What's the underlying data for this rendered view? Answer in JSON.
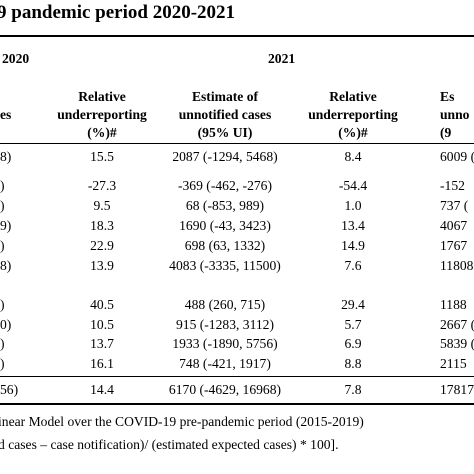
{
  "title": "9 pandemic period 2020-2021",
  "year_left": "2020",
  "year_right": "2021",
  "headers": {
    "c1": [
      "es"
    ],
    "c2": [
      "Relative",
      "underreporting",
      "(%)#"
    ],
    "c3": [
      "Estimate of",
      "unnotified cases",
      "(95% UI)"
    ],
    "c4": [
      "Relative",
      "underreporting",
      "(%)#"
    ],
    "c5": [
      "Es",
      "unno",
      "(9"
    ]
  },
  "rows": [
    {
      "c1": "8)",
      "c2": "15.5",
      "c3": "2087 (-1294, 5468)",
      "c4": "8.4",
      "c5": "6009 ("
    },
    {
      "c1": ")",
      "c2": "-27.3",
      "c3": "-369 (-462, -276)",
      "c4": "-54.4",
      "c5": "-152"
    },
    {
      "c1": ")",
      "c2": "9.5",
      "c3": "68 (-853, 989)",
      "c4": "1.0",
      "c5": "737 ("
    },
    {
      "c1": "9)",
      "c2": "18.3",
      "c3": "1690 (-43, 3423)",
      "c4": "13.4",
      "c5": "4067"
    },
    {
      "c1": ")",
      "c2": "22.9",
      "c3": "698 (63, 1332)",
      "c4": "14.9",
      "c5": "1767"
    },
    {
      "c1": "8)",
      "c2": "13.9",
      "c3": "4083 (-3335, 11500)",
      "c4": "7.6",
      "c5": "11808 ("
    },
    {
      "c1": ")",
      "c2": "40.5",
      "c3": "488 (260, 715)",
      "c4": "29.4",
      "c5": "1188"
    },
    {
      "c1": "0)",
      "c2": "10.5",
      "c3": "915 (-1283, 3112)",
      "c4": "5.7",
      "c5": "2667 ("
    },
    {
      "c1": ")",
      "c2": "13.7",
      "c3": "1933 (-1890, 5756)",
      "c4": "6.9",
      "c5": "5839 ("
    },
    {
      "c1": ")",
      "c2": "16.1",
      "c3": "748 (-421, 1917)",
      "c4": "8.8",
      "c5": "2115"
    }
  ],
  "total": {
    "c1": "56)",
    "c2": "14.4",
    "c3": "6170 (-4629, 16968)",
    "c4": "7.8",
    "c5": "17817 ("
  },
  "footnotes": [
    "inear Model over the COVID-19 pre-pandemic period (2015-2019)",
    "d cases – case notification)/ (estimated expected cases) * 100]."
  ]
}
